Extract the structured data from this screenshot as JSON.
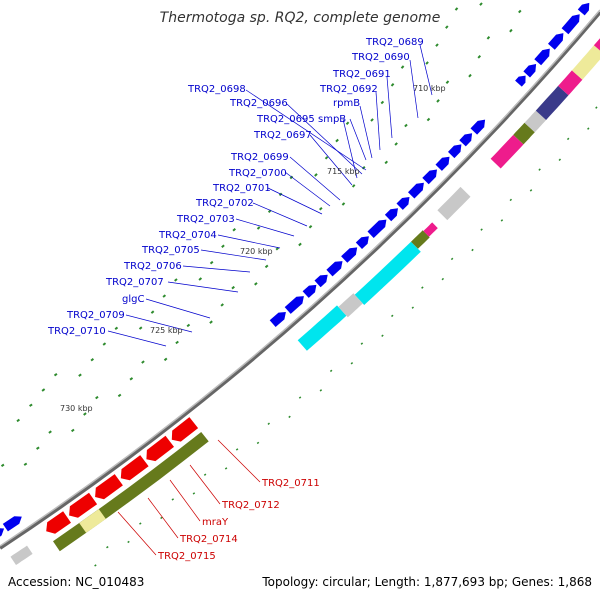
{
  "title": "Thermotoga sp. RQ2, complete genome",
  "footer": {
    "accession": "Accession: NC_010483",
    "topology": "Topology: circular; Length: 1,877,693 bp; Genes: 1,868"
  },
  "colors": {
    "backbone": "#777777",
    "forward_cds": "#0000ee",
    "reverse_cds": "#ee0000",
    "cyan": "#00e5ee",
    "magenta": "#ee1c8c",
    "olive": "#667a1c",
    "khaki": "#eeea9a",
    "grey": "#c8c8c8",
    "navy": "#3a3a8a",
    "skew_green": "#2e8b2e"
  },
  "ticks": [
    "710 kbp",
    "715 kbp",
    "720 kbp",
    "725 kbp",
    "730 kbp"
  ],
  "labels_blue": [
    "TRQ2_0689",
    "TRQ2_0690",
    "TRQ2_0691",
    "TRQ2_0692",
    "rpmB",
    "TRQ2_0698",
    "TRQ2_0696",
    "TRQ2_0695",
    "smpB",
    "TRQ2_0697",
    "TRQ2_0699",
    "TRQ2_0700",
    "TRQ2_0701",
    "TRQ2_0702",
    "TRQ2_0703",
    "TRQ2_0704",
    "TRQ2_0705",
    "TRQ2_0706",
    "TRQ2_0707",
    "glgC",
    "TRQ2_0709",
    "TRQ2_0710"
  ],
  "labels_red": [
    "TRQ2_0711",
    "TRQ2_0712",
    "mraY",
    "TRQ2_0714",
    "TRQ2_0715"
  ]
}
